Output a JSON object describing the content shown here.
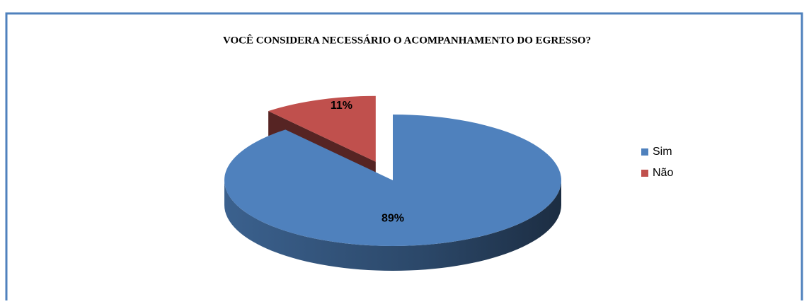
{
  "chart_data": {
    "type": "pie",
    "title": "VOCÊ CONSIDERA NECESSÁRIO O ACOMPANHAMENTO DO EGRESSO?",
    "categories": [
      "Sim",
      "Não"
    ],
    "values": [
      89,
      11
    ],
    "value_labels": [
      "89%",
      "11%"
    ],
    "colors": [
      "#4f81bd",
      "#c0504d"
    ],
    "legend": "right",
    "exploded": [
      false,
      true
    ]
  }
}
